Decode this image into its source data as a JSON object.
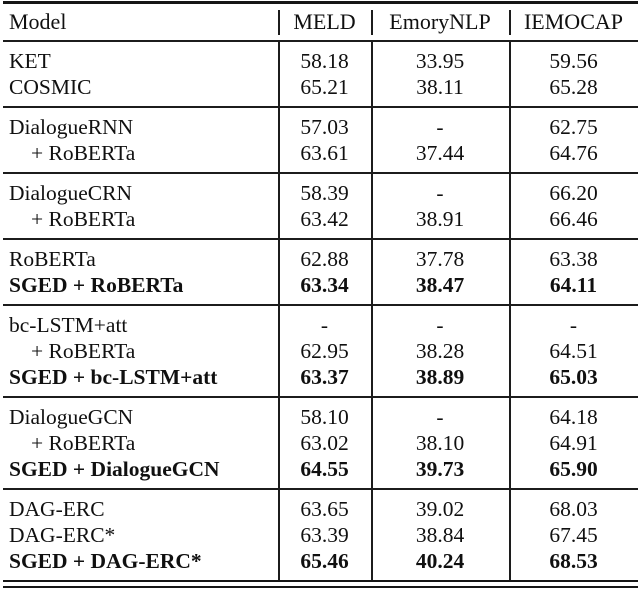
{
  "table": {
    "columns": [
      "Model",
      "MELD",
      "EmoryNLP",
      "IEMOCAP"
    ],
    "sections": [
      {
        "rows": [
          {
            "model": "KET",
            "bold": false,
            "indent": false,
            "values": [
              "58.18",
              "33.95",
              "59.56"
            ]
          },
          {
            "model": "COSMIC",
            "bold": false,
            "indent": false,
            "values": [
              "65.21",
              "38.11",
              "65.28"
            ]
          }
        ]
      },
      {
        "rows": [
          {
            "model": "DialogueRNN",
            "bold": false,
            "indent": false,
            "values": [
              "57.03",
              "-",
              "62.75"
            ]
          },
          {
            "model": "+ RoBERTa",
            "bold": false,
            "indent": true,
            "values": [
              "63.61",
              "37.44",
              "64.76"
            ]
          }
        ]
      },
      {
        "rows": [
          {
            "model": "DialogueCRN",
            "bold": false,
            "indent": false,
            "values": [
              "58.39",
              "-",
              "66.20"
            ]
          },
          {
            "model": "+ RoBERTa",
            "bold": false,
            "indent": true,
            "values": [
              "63.42",
              "38.91",
              "66.46"
            ]
          }
        ]
      },
      {
        "rows": [
          {
            "model": "RoBERTa",
            "bold": false,
            "indent": false,
            "values": [
              "62.88",
              "37.78",
              "63.38"
            ]
          },
          {
            "model": "SGED + RoBERTa",
            "bold": true,
            "indent": false,
            "values": [
              "63.34",
              "38.47",
              "64.11"
            ]
          }
        ]
      },
      {
        "rows": [
          {
            "model": "bc-LSTM+att",
            "bold": false,
            "indent": false,
            "values": [
              "-",
              "-",
              "-"
            ]
          },
          {
            "model": "+ RoBERTa",
            "bold": false,
            "indent": true,
            "values": [
              "62.95",
              "38.28",
              "64.51"
            ]
          },
          {
            "model": "SGED + bc-LSTM+att",
            "bold": true,
            "indent": false,
            "values": [
              "63.37",
              "38.89",
              "65.03"
            ]
          }
        ]
      },
      {
        "rows": [
          {
            "model": "DialogueGCN",
            "bold": false,
            "indent": false,
            "values": [
              "58.10",
              "-",
              "64.18"
            ]
          },
          {
            "model": "+ RoBERTa",
            "bold": false,
            "indent": true,
            "values": [
              "63.02",
              "38.10",
              "64.91"
            ]
          },
          {
            "model": "SGED + DialogueGCN",
            "bold": true,
            "indent": false,
            "values": [
              "64.55",
              "39.73",
              "65.90"
            ]
          }
        ]
      },
      {
        "rows": [
          {
            "model": "DAG-ERC",
            "bold": false,
            "indent": false,
            "values": [
              "63.65",
              "39.02",
              "68.03"
            ]
          },
          {
            "model": "DAG-ERC*",
            "bold": false,
            "indent": false,
            "values": [
              "63.39",
              "38.84",
              "67.45"
            ]
          },
          {
            "model": "SGED + DAG-ERC*",
            "bold": true,
            "indent": false,
            "values": [
              "65.46",
              "40.24",
              "68.53"
            ]
          }
        ]
      }
    ]
  }
}
